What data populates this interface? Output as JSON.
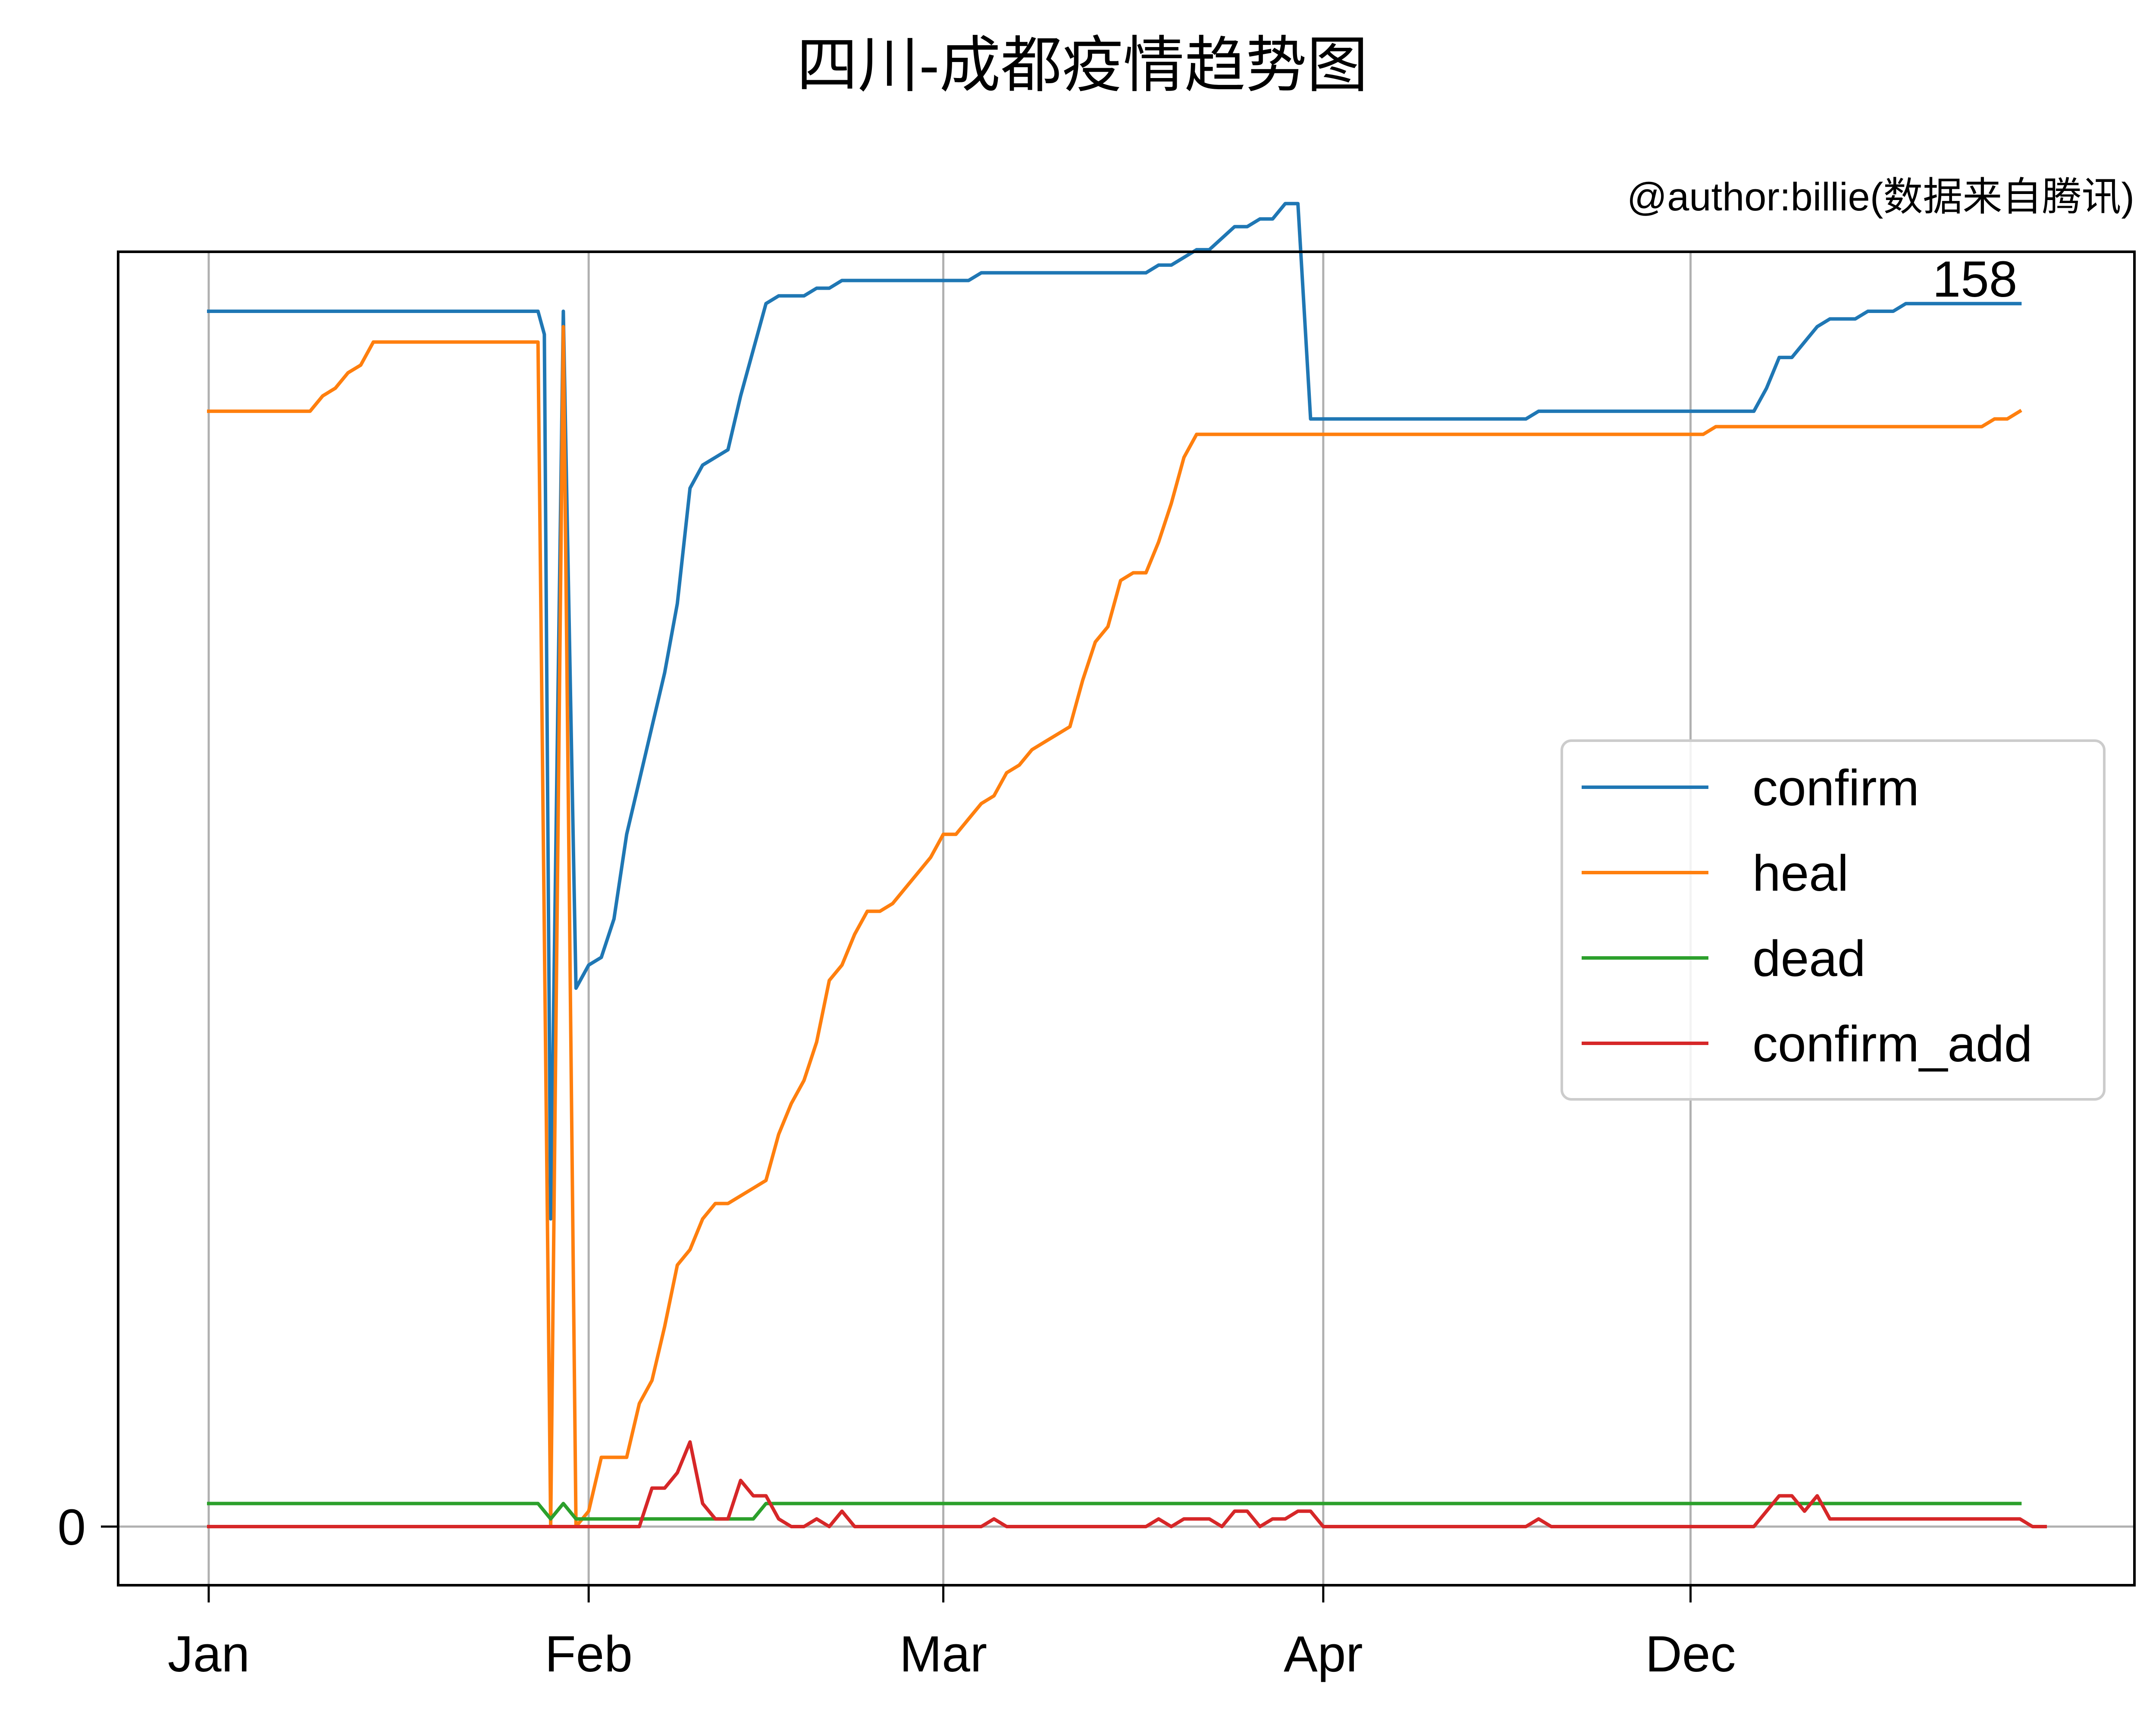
{
  "chart_data": {
    "type": "line",
    "title": "四川-成都疫情趋势图",
    "subtitle": "@author:billie(数据来自腾讯)",
    "xlabel": "",
    "ylabel": "",
    "x_tick_labels": [
      "Jan",
      "Feb",
      "Mar",
      "Apr",
      "Dec"
    ],
    "y_tick_labels": [
      "0"
    ],
    "ylim": [
      -8,
      170
    ],
    "grid": true,
    "legend_position": "center-right",
    "annotation": "158",
    "series": [
      {
        "name": "confirm",
        "color": "#1f77b4",
        "points": [
          [
            0,
            158
          ],
          [
            26,
            158
          ],
          [
            26.5,
            155
          ],
          [
            27,
            40
          ],
          [
            28,
            158
          ],
          [
            29,
            70
          ],
          [
            30,
            73
          ],
          [
            31,
            74
          ],
          [
            32,
            79
          ],
          [
            33,
            90
          ],
          [
            34,
            97
          ],
          [
            35,
            104
          ],
          [
            36,
            111
          ],
          [
            37,
            120
          ],
          [
            38,
            135
          ],
          [
            39,
            138
          ],
          [
            40,
            139
          ],
          [
            41,
            140
          ],
          [
            42,
            147
          ],
          [
            43,
            153
          ],
          [
            44,
            159
          ],
          [
            45,
            160
          ],
          [
            46,
            160
          ],
          [
            47,
            160
          ],
          [
            48,
            161
          ],
          [
            49,
            161
          ],
          [
            50,
            162
          ],
          [
            51,
            162
          ],
          [
            60,
            162
          ],
          [
            61,
            163
          ],
          [
            74,
            163
          ],
          [
            75,
            164
          ],
          [
            76,
            164
          ],
          [
            78,
            166
          ],
          [
            79,
            166
          ],
          [
            81,
            169
          ],
          [
            82,
            169
          ],
          [
            83,
            170
          ],
          [
            84,
            170
          ],
          [
            85,
            172
          ],
          [
            86,
            172
          ],
          [
            87,
            144
          ],
          [
            104,
            144
          ],
          [
            105,
            145
          ],
          [
            122,
            145
          ],
          [
            123,
            148
          ],
          [
            124,
            152
          ],
          [
            125,
            152
          ],
          [
            126,
            154
          ],
          [
            127,
            156
          ],
          [
            128,
            157
          ],
          [
            129,
            157
          ],
          [
            130,
            157
          ],
          [
            131,
            158
          ],
          [
            132,
            158
          ],
          [
            133,
            158
          ],
          [
            134,
            159
          ],
          [
            143,
            159
          ]
        ]
      },
      {
        "name": "heal",
        "color": "#ff7f0e",
        "points": [
          [
            0,
            145
          ],
          [
            8,
            145
          ],
          [
            9,
            147
          ],
          [
            10,
            148
          ],
          [
            11,
            150
          ],
          [
            12,
            151
          ],
          [
            13,
            154
          ],
          [
            26,
            154
          ],
          [
            27,
            0
          ],
          [
            28,
            156
          ],
          [
            29,
            0
          ],
          [
            30,
            2
          ],
          [
            31,
            9
          ],
          [
            32,
            9
          ],
          [
            33,
            9
          ],
          [
            34,
            16
          ],
          [
            35,
            19
          ],
          [
            36,
            26
          ],
          [
            37,
            34
          ],
          [
            38,
            36
          ],
          [
            39,
            40
          ],
          [
            40,
            42
          ],
          [
            41,
            42
          ],
          [
            42,
            43
          ],
          [
            43,
            44
          ],
          [
            44,
            45
          ],
          [
            45,
            51
          ],
          [
            46,
            55
          ],
          [
            47,
            58
          ],
          [
            48,
            63
          ],
          [
            49,
            71
          ],
          [
            50,
            73
          ],
          [
            51,
            77
          ],
          [
            52,
            80
          ],
          [
            53,
            80
          ],
          [
            54,
            81
          ],
          [
            55,
            83
          ],
          [
            56,
            85
          ],
          [
            57,
            87
          ],
          [
            58,
            90
          ],
          [
            59,
            90
          ],
          [
            60,
            92
          ],
          [
            61,
            94
          ],
          [
            62,
            95
          ],
          [
            63,
            98
          ],
          [
            64,
            99
          ],
          [
            65,
            101
          ],
          [
            66,
            102
          ],
          [
            67,
            103
          ],
          [
            68,
            104
          ],
          [
            69,
            110
          ],
          [
            70,
            115
          ],
          [
            71,
            117
          ],
          [
            72,
            123
          ],
          [
            73,
            124
          ],
          [
            74,
            124
          ],
          [
            75,
            128
          ],
          [
            76,
            133
          ],
          [
            77,
            139
          ],
          [
            78,
            142
          ],
          [
            118,
            142
          ],
          [
            119,
            143
          ],
          [
            140,
            143
          ],
          [
            141,
            144
          ],
          [
            142,
            144
          ],
          [
            143,
            145
          ]
        ]
      },
      {
        "name": "dead",
        "color": "#2ca02c",
        "points": [
          [
            0,
            3
          ],
          [
            26,
            3
          ],
          [
            27,
            1
          ],
          [
            28,
            3
          ],
          [
            29,
            1
          ],
          [
            43,
            1
          ],
          [
            44,
            3
          ],
          [
            143,
            3
          ]
        ]
      },
      {
        "name": "confirm_add",
        "color": "#d62728",
        "points": [
          [
            0,
            0
          ],
          [
            34,
            0
          ],
          [
            35,
            5
          ],
          [
            36,
            5
          ],
          [
            37,
            7
          ],
          [
            38,
            11
          ],
          [
            39,
            3
          ],
          [
            40,
            1
          ],
          [
            41,
            1
          ],
          [
            42,
            6
          ],
          [
            43,
            4
          ],
          [
            44,
            4
          ],
          [
            45,
            1
          ],
          [
            46,
            0
          ],
          [
            47,
            0
          ],
          [
            48,
            1
          ],
          [
            49,
            0
          ],
          [
            50,
            2
          ],
          [
            51,
            0
          ],
          [
            61,
            0
          ],
          [
            62,
            1
          ],
          [
            63,
            0
          ],
          [
            74,
            0
          ],
          [
            75,
            1
          ],
          [
            76,
            0
          ],
          [
            77,
            1
          ],
          [
            79,
            1
          ],
          [
            80,
            0
          ],
          [
            81,
            2
          ],
          [
            82,
            2
          ],
          [
            83,
            0
          ],
          [
            84,
            1
          ],
          [
            85,
            1
          ],
          [
            86,
            2
          ],
          [
            87,
            2
          ],
          [
            88,
            0
          ],
          [
            104,
            0
          ],
          [
            105,
            1
          ],
          [
            106,
            0
          ],
          [
            122,
            0
          ],
          [
            123,
            2
          ],
          [
            124,
            4
          ],
          [
            125,
            4
          ],
          [
            126,
            2
          ],
          [
            127,
            4
          ],
          [
            128,
            1
          ],
          [
            143,
            1
          ],
          [
            144,
            0
          ],
          [
            145,
            0
          ]
        ]
      }
    ]
  }
}
